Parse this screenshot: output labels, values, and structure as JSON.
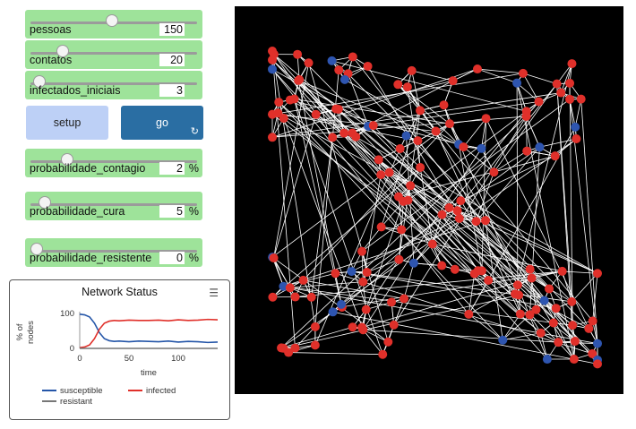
{
  "sliders": [
    {
      "id": "pessoas",
      "label": "pessoas",
      "value": "150",
      "unit": "",
      "fraction": 0.49
    },
    {
      "id": "contatos",
      "label": "contatos",
      "value": "20",
      "unit": "",
      "fraction": 0.17
    },
    {
      "id": "infectados_iniciais",
      "label": "infectados_iniciais",
      "value": "3",
      "unit": "",
      "fraction": 0.02
    },
    {
      "id": "probabilidade_contagio",
      "label": "probabilidade_contagio",
      "value": "2",
      "unit": "%",
      "fraction": 0.2
    },
    {
      "id": "probabilidade_cura",
      "label": "probabilidade_cura",
      "value": "5",
      "unit": "%",
      "fraction": 0.05
    },
    {
      "id": "probabilidade_resistente",
      "label": "probabilidade_resistente",
      "value": "0",
      "unit": "%",
      "fraction": 0.0
    }
  ],
  "buttons": {
    "setup_label": "setup",
    "go_label": "go",
    "go_icon": "loop-arrow-icon"
  },
  "plot": {
    "title": "Network Status",
    "menu_icon": "hamburger-menu-icon",
    "chart_data": {
      "type": "line",
      "xlabel": "time",
      "ylabel": "% of nodes",
      "xlim": [
        0,
        140
      ],
      "ylim": [
        0,
        100
      ],
      "xticks": [
        "0",
        "50",
        "100"
      ],
      "yticks": [
        "0",
        "100"
      ],
      "series": [
        {
          "name": "susceptible",
          "color": "#2556a8",
          "x": [
            0,
            5,
            10,
            15,
            20,
            25,
            30,
            35,
            40,
            50,
            60,
            70,
            80,
            90,
            100,
            110,
            120,
            130,
            140
          ],
          "values": [
            98,
            96,
            90,
            72,
            45,
            28,
            22,
            20,
            21,
            19,
            21,
            20,
            19,
            21,
            18,
            20,
            19,
            17,
            18
          ]
        },
        {
          "name": "infected",
          "color": "#e0302a",
          "x": [
            0,
            5,
            10,
            15,
            20,
            25,
            30,
            35,
            40,
            50,
            60,
            70,
            80,
            90,
            100,
            110,
            120,
            130,
            140
          ],
          "values": [
            2,
            4,
            10,
            28,
            55,
            72,
            78,
            80,
            79,
            81,
            80,
            80,
            81,
            79,
            82,
            80,
            81,
            83,
            82
          ]
        },
        {
          "name": "resistant",
          "color": "#777777",
          "x": [
            0,
            140
          ],
          "values": [
            0,
            0
          ]
        }
      ]
    }
  },
  "network": {
    "node_infected_color": "#e0302a",
    "node_susceptible_color": "#2e55b0",
    "link_color": "#ffffff"
  }
}
